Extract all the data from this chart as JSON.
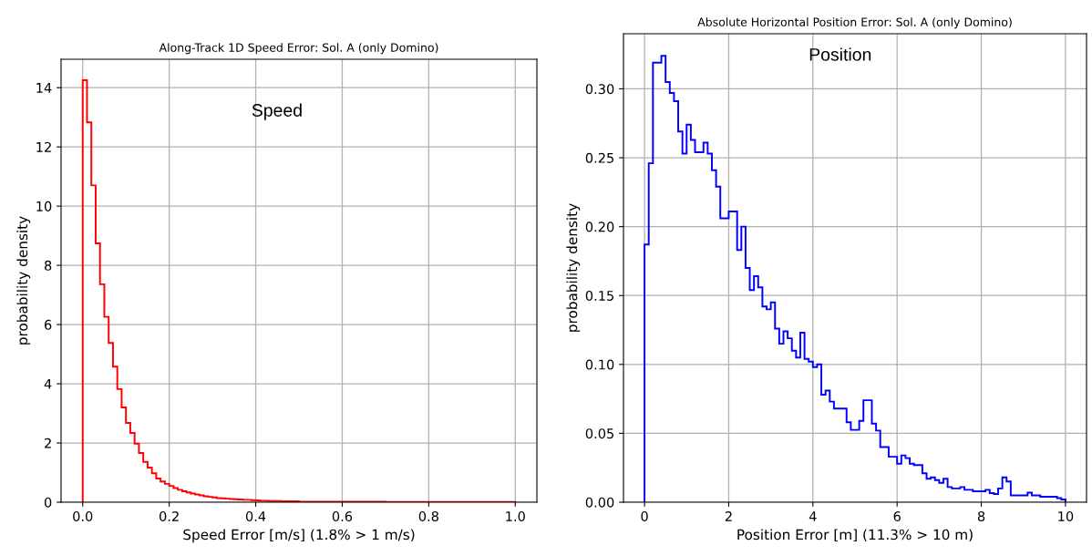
{
  "chart_data": [
    {
      "type": "histogram",
      "title": "Along-Track 1D Speed Error: Sol. A (only Domino)",
      "xlabel": "Speed Error [m/s] (1.8% > 1 m/s)",
      "ylabel": "probability density",
      "annotations": [
        "Speed"
      ],
      "color": "#ff0000",
      "grid": true,
      "bins": [
        0.0,
        0.01,
        0.02,
        0.03,
        0.04,
        0.05,
        0.06,
        0.07,
        0.08,
        0.09,
        0.1,
        0.11,
        0.12,
        0.13,
        0.14,
        0.15,
        0.16,
        0.17,
        0.18,
        0.19,
        0.2,
        0.21,
        0.22,
        0.23,
        0.24,
        0.25,
        0.26,
        0.27,
        0.28,
        0.29,
        0.3,
        0.31,
        0.32,
        0.33,
        0.34,
        0.35,
        0.36,
        0.37,
        0.38,
        0.39,
        0.4,
        0.41,
        0.42,
        0.43,
        0.44,
        0.45,
        0.46,
        0.47,
        0.48,
        0.49,
        0.5,
        0.51,
        0.52,
        0.53,
        0.54,
        0.55,
        0.56,
        0.57,
        0.58,
        0.59,
        0.6,
        0.61,
        0.62,
        0.63,
        0.64,
        0.65,
        0.66,
        0.67,
        0.68,
        0.69,
        0.7,
        0.71,
        0.72,
        0.73,
        0.74,
        0.75,
        0.76,
        0.77,
        0.78,
        0.79,
        0.8,
        0.81,
        0.82,
        0.83,
        0.84,
        0.85,
        0.86,
        0.87,
        0.88,
        0.89,
        0.9,
        0.91,
        0.92,
        0.93,
        0.94,
        0.95,
        0.96,
        0.97,
        0.98,
        0.99,
        1.0
      ],
      "values": [
        14.25,
        12.83,
        10.7,
        8.74,
        7.36,
        6.26,
        5.38,
        4.58,
        3.82,
        3.2,
        2.68,
        2.34,
        1.98,
        1.66,
        1.36,
        1.17,
        0.98,
        0.8,
        0.7,
        0.62,
        0.55,
        0.48,
        0.42,
        0.37,
        0.33,
        0.29,
        0.26,
        0.23,
        0.2,
        0.18,
        0.16,
        0.14,
        0.13,
        0.12,
        0.11,
        0.1,
        0.09,
        0.08,
        0.08,
        0.07,
        0.06,
        0.05,
        0.05,
        0.04,
        0.04,
        0.04,
        0.03,
        0.03,
        0.03,
        0.03,
        0.02,
        0.02,
        0.02,
        0.02,
        0.02,
        0.02,
        0.02,
        0.02,
        0.02,
        0.02,
        0.02,
        0.02,
        0.02,
        0.02,
        0.02,
        0.02,
        0.02,
        0.02,
        0.02,
        0.02,
        0.01,
        0.01,
        0.01,
        0.01,
        0.01,
        0.01,
        0.01,
        0.01,
        0.01,
        0.01,
        0.01,
        0.01,
        0.01,
        0.01,
        0.01,
        0.01,
        0.01,
        0.01,
        0.01,
        0.01,
        0.01,
        0.01,
        0.01,
        0.01,
        0.01,
        0.01,
        0.01,
        0.01,
        0.01,
        0.01
      ],
      "xlim": [
        -0.05,
        1.05
      ],
      "ylim": [
        0,
        14.96
      ],
      "xticks": [
        {
          "value": 0,
          "label": "0.0"
        },
        {
          "value": 0.2,
          "label": "0.2"
        },
        {
          "value": 0.4,
          "label": "0.4"
        },
        {
          "value": 0.6,
          "label": "0.6"
        },
        {
          "value": 0.8,
          "label": "0.8"
        },
        {
          "value": 1,
          "label": "1.0"
        }
      ],
      "yticks": [
        0,
        2,
        4,
        6,
        8,
        10,
        12,
        14
      ]
    },
    {
      "type": "histogram",
      "title": "Absolute Horizontal Position Error: Sol. A (only Domino)",
      "xlabel": "Position Error [m] (11.3% > 10 m)",
      "ylabel": "probability density",
      "annotations": [
        "Position"
      ],
      "color": "#0000ff",
      "grid": true,
      "bins": [
        0.0,
        0.1,
        0.2,
        0.3,
        0.4,
        0.5,
        0.6,
        0.7,
        0.8,
        0.9,
        1.0,
        1.1,
        1.2,
        1.3,
        1.4,
        1.5,
        1.6,
        1.7,
        1.8,
        1.9,
        2.0,
        2.1,
        2.2,
        2.3,
        2.4,
        2.5,
        2.6,
        2.7,
        2.8,
        2.9,
        3.0,
        3.1,
        3.2,
        3.3,
        3.4,
        3.5,
        3.6,
        3.7,
        3.8,
        3.9,
        4.0,
        4.1,
        4.2,
        4.3,
        4.4,
        4.5,
        4.6,
        4.7,
        4.8,
        4.9,
        5.0,
        5.1,
        5.2,
        5.3,
        5.4,
        5.5,
        5.6,
        5.7,
        5.8,
        5.9,
        6.0,
        6.1,
        6.2,
        6.3,
        6.4,
        6.5,
        6.6,
        6.7,
        6.8,
        6.9,
        7.0,
        7.1,
        7.2,
        7.3,
        7.4,
        7.5,
        7.6,
        7.7,
        7.8,
        7.9,
        8.0,
        8.1,
        8.2,
        8.3,
        8.4,
        8.5,
        8.6,
        8.7,
        8.8,
        8.9,
        9.0,
        9.1,
        9.2,
        9.3,
        9.4,
        9.5,
        9.6,
        9.7,
        9.8,
        9.9,
        10.0
      ],
      "values": [
        0.187,
        0.246,
        0.319,
        0.319,
        0.324,
        0.305,
        0.297,
        0.291,
        0.269,
        0.253,
        0.274,
        0.263,
        0.254,
        0.254,
        0.261,
        0.253,
        0.241,
        0.229,
        0.206,
        0.206,
        0.211,
        0.211,
        0.183,
        0.2,
        0.17,
        0.154,
        0.164,
        0.156,
        0.142,
        0.14,
        0.145,
        0.126,
        0.115,
        0.124,
        0.119,
        0.11,
        0.105,
        0.123,
        0.104,
        0.102,
        0.098,
        0.1,
        0.078,
        0.081,
        0.073,
        0.068,
        0.068,
        0.068,
        0.058,
        0.0525,
        0.0525,
        0.059,
        0.074,
        0.074,
        0.057,
        0.052,
        0.04,
        0.04,
        0.033,
        0.033,
        0.028,
        0.034,
        0.032,
        0.028,
        0.027,
        0.027,
        0.021,
        0.017,
        0.018,
        0.016,
        0.014,
        0.017,
        0.011,
        0.01,
        0.01,
        0.011,
        0.009,
        0.009,
        0.008,
        0.008,
        0.008,
        0.009,
        0.0066,
        0.006,
        0.01,
        0.018,
        0.015,
        0.005,
        0.005,
        0.005,
        0.005,
        0.007,
        0.005,
        0.005,
        0.004,
        0.004,
        0.004,
        0.004,
        0.003,
        0.002
      ],
      "xlim": [
        -0.5,
        10.5
      ],
      "ylim": [
        0,
        0.34
      ],
      "xticks": [
        0,
        2,
        4,
        6,
        8,
        10
      ],
      "yticks": [
        {
          "value": 0,
          "label": "0.00"
        },
        {
          "value": 0.05,
          "label": "0.05"
        },
        {
          "value": 0.1,
          "label": "0.10"
        },
        {
          "value": 0.15,
          "label": "0.15"
        },
        {
          "value": 0.2,
          "label": "0.20"
        },
        {
          "value": 0.25,
          "label": "0.25"
        },
        {
          "value": 0.3,
          "label": "0.30"
        }
      ]
    }
  ]
}
